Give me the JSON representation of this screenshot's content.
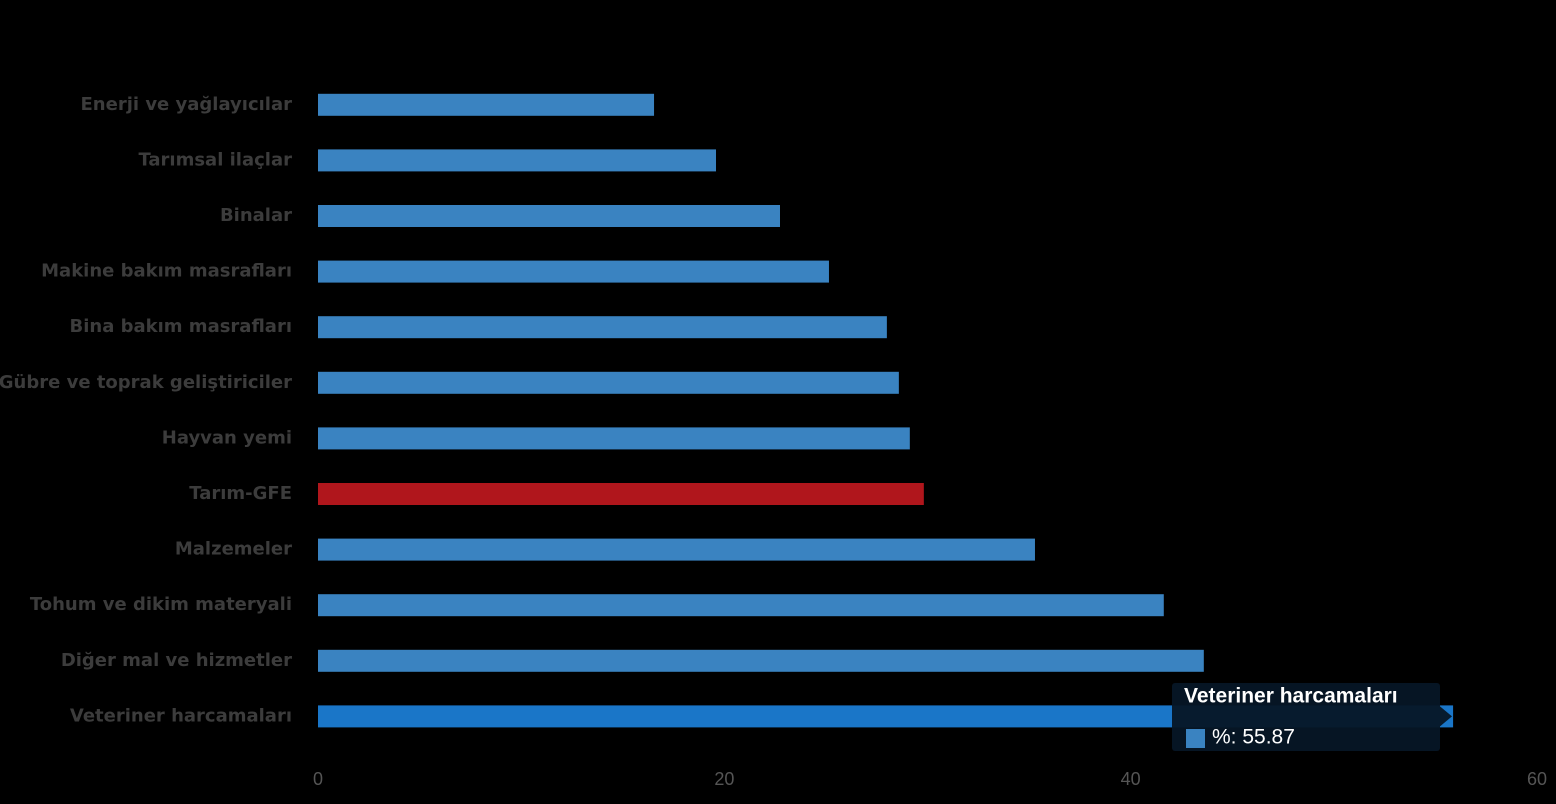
{
  "chart_data": {
    "type": "hbar",
    "categories": [
      "Enerji  ve yağlayıcılar",
      "Tarımsal ilaçlar",
      "Binalar",
      "Makine bakım masrafları",
      "Bina bakım masrafları",
      "Gübre ve toprak geliştiriciler",
      "Hayvan yemi",
      "Tarım-GFE",
      "Malzemeler",
      "Tohum ve dikim materyali",
      "Diğer mal ve hizmetler",
      "Veteriner harcamaları"
    ],
    "series": [
      {
        "name": "%",
        "values": [
          16.54,
          19.59,
          22.74,
          25.15,
          28.0,
          28.59,
          29.13,
          29.82,
          35.29,
          41.63,
          43.6,
          55.87
        ],
        "colors": [
          "#3a83c1",
          "#3a83c1",
          "#3a83c1",
          "#3a83c1",
          "#3a83c1",
          "#3a83c1",
          "#3a83c1",
          "#b0161c",
          "#3a83c1",
          "#3a83c1",
          "#3a83c1",
          "#1a76c8"
        ]
      }
    ],
    "xlim": [
      0,
      60
    ],
    "xticks": [
      0,
      20,
      40,
      60
    ],
    "grid": false,
    "tooltip": {
      "index": 11,
      "title": "Veteriner harcamaları",
      "label": "%: 55.87",
      "color": "#3a83c1"
    }
  }
}
